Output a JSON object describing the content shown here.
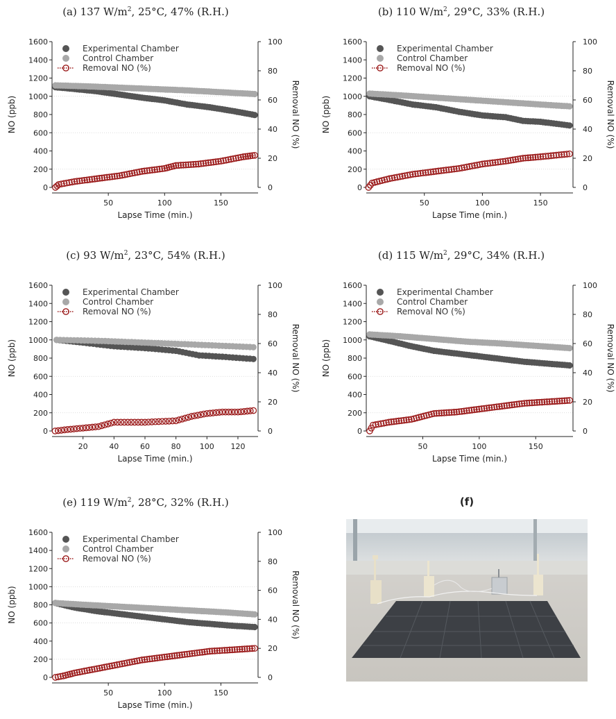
{
  "chart_data": [
    {
      "type": "scatter",
      "title_prefix": "(a) 137 W/m",
      "title_sup": "2",
      "title_suffix": ", 25°C, 47% (R.H.)",
      "xlabel": "Lapse Time (min.)",
      "ylabel": "NO (ppb)",
      "y2label": "Removal NO (%)",
      "xlim": [
        0,
        183
      ],
      "ylim": [
        0,
        1600
      ],
      "y2lim": [
        0,
        100
      ],
      "xticks": [
        50,
        100,
        150
      ],
      "yticks": [
        0,
        200,
        400,
        600,
        800,
        1000,
        1200,
        1400,
        1600
      ],
      "y2ticks": [
        0,
        20,
        40,
        60,
        80,
        100
      ],
      "legend": [
        "Experimental Chamber",
        "Control Chamber",
        "Removal NO (%)"
      ],
      "series": [
        {
          "name": "Experimental Chamber",
          "axis": "left",
          "x": [
            3,
            20,
            40,
            60,
            80,
            100,
            120,
            140,
            160,
            180
          ],
          "y": [
            1100,
            1080,
            1055,
            1020,
            985,
            955,
            910,
            880,
            840,
            795
          ]
        },
        {
          "name": "Control Chamber",
          "axis": "left",
          "x": [
            3,
            30,
            60,
            90,
            120,
            150,
            180
          ],
          "y": [
            1120,
            1110,
            1095,
            1080,
            1065,
            1045,
            1025
          ]
        },
        {
          "name": "Removal NO (%)",
          "axis": "right",
          "x": [
            3,
            6,
            20,
            40,
            60,
            80,
            100,
            110,
            130,
            150,
            170,
            180
          ],
          "y": [
            0,
            2,
            4,
            6,
            8,
            11,
            13,
            15,
            16,
            18,
            21,
            22
          ]
        }
      ]
    },
    {
      "type": "scatter",
      "title_prefix": "(b) 110 W/m",
      "title_sup": "2",
      "title_suffix": ", 29°C, 33% (R.H.)",
      "xlabel": "Lapse Time (min.)",
      "ylabel": "NO (ppb)",
      "y2label": "Removal NO (%)",
      "xlim": [
        0,
        178
      ],
      "ylim": [
        0,
        1600
      ],
      "y2lim": [
        0,
        100
      ],
      "xticks": [
        50,
        100,
        150
      ],
      "yticks": [
        0,
        200,
        400,
        600,
        800,
        1000,
        1200,
        1400,
        1600
      ],
      "y2ticks": [
        0,
        20,
        40,
        60,
        80,
        100
      ],
      "legend": [
        "Experimental Chamber",
        "Control Chamber",
        "Removal NO (%)"
      ],
      "series": [
        {
          "name": "Experimental Chamber",
          "axis": "left",
          "x": [
            3,
            20,
            40,
            60,
            80,
            100,
            120,
            135,
            150,
            175
          ],
          "y": [
            1000,
            960,
            910,
            880,
            830,
            790,
            770,
            730,
            720,
            680
          ]
        },
        {
          "name": "Control Chamber",
          "axis": "left",
          "x": [
            3,
            30,
            60,
            90,
            120,
            150,
            175
          ],
          "y": [
            1030,
            1010,
            985,
            960,
            935,
            910,
            890
          ]
        },
        {
          "name": "Removal NO (%)",
          "axis": "right",
          "x": [
            2,
            5,
            20,
            40,
            60,
            80,
            100,
            120,
            135,
            150,
            175
          ],
          "y": [
            0,
            3,
            6,
            9,
            11,
            13,
            16,
            18,
            20,
            21,
            23
          ]
        }
      ]
    },
    {
      "type": "scatter",
      "title_prefix": "(c) 93 W/m",
      "title_sup": "2",
      "title_suffix": ", 23°C, 54% (R.H.)",
      "xlabel": "Lapse Time (min.)",
      "ylabel": "NO (ppb)",
      "y2label": "Removal NO (%)",
      "xlim": [
        0,
        133
      ],
      "ylim": [
        0,
        1600
      ],
      "y2lim": [
        0,
        100
      ],
      "xticks": [
        20,
        40,
        60,
        80,
        100,
        120
      ],
      "yticks": [
        0,
        200,
        400,
        600,
        800,
        1000,
        1200,
        1400,
        1600
      ],
      "y2ticks": [
        0,
        20,
        40,
        60,
        80,
        100
      ],
      "legend": [
        "Experimental Chamber",
        "Control Chamber",
        "Removal NO (%)"
      ],
      "series": [
        {
          "name": "Experimental Chamber",
          "axis": "left",
          "x": [
            3,
            20,
            40,
            60,
            80,
            95,
            110,
            130
          ],
          "y": [
            1000,
            970,
            930,
            910,
            880,
            830,
            815,
            790
          ]
        },
        {
          "name": "Control Chamber",
          "axis": "left",
          "x": [
            3,
            30,
            60,
            90,
            130
          ],
          "y": [
            1000,
            990,
            970,
            950,
            920
          ]
        },
        {
          "name": "Removal NO (%)",
          "axis": "right",
          "x": [
            2,
            10,
            20,
            30,
            40,
            60,
            80,
            90,
            100,
            110,
            120,
            130
          ],
          "y": [
            0,
            1,
            2,
            3,
            6,
            6,
            7,
            10,
            12,
            13,
            13,
            14
          ]
        }
      ]
    },
    {
      "type": "scatter",
      "title_prefix": "(d) 115 W/m",
      "title_sup": "2",
      "title_suffix": ", 29°C, 34% (R.H.)",
      "xlabel": "Lapse Time (min.)",
      "ylabel": "NO (ppb)",
      "y2label": "Removal NO (%)",
      "xlim": [
        0,
        183
      ],
      "ylim": [
        0,
        1600
      ],
      "y2lim": [
        0,
        100
      ],
      "xticks": [
        50,
        100,
        150
      ],
      "yticks": [
        0,
        200,
        400,
        600,
        800,
        1000,
        1200,
        1400,
        1600
      ],
      "y2ticks": [
        0,
        20,
        40,
        60,
        80,
        100
      ],
      "legend": [
        "Experimental Chamber",
        "Control Chamber",
        "Removal NO (%)"
      ],
      "series": [
        {
          "name": "Experimental Chamber",
          "axis": "left",
          "x": [
            3,
            20,
            40,
            60,
            80,
            100,
            120,
            140,
            160,
            180
          ],
          "y": [
            1040,
            990,
            930,
            880,
            850,
            820,
            790,
            760,
            740,
            720
          ]
        },
        {
          "name": "Control Chamber",
          "axis": "left",
          "x": [
            3,
            30,
            60,
            90,
            120,
            150,
            180
          ],
          "y": [
            1060,
            1040,
            1010,
            980,
            960,
            935,
            910
          ]
        },
        {
          "name": "Removal NO (%)",
          "axis": "right",
          "x": [
            3,
            6,
            20,
            40,
            60,
            80,
            100,
            120,
            140,
            160,
            180
          ],
          "y": [
            0,
            4,
            6,
            8,
            12,
            13,
            15,
            17,
            19,
            20,
            21
          ]
        }
      ]
    },
    {
      "type": "scatter",
      "title_prefix": "(e) 119 W/m",
      "title_sup": "2",
      "title_suffix": ", 28°C, 32% (R.H.)",
      "xlabel": "Lapse Time (min.)",
      "ylabel": "NO (ppb)",
      "y2label": "Removal NO (%)",
      "xlim": [
        0,
        183
      ],
      "ylim": [
        0,
        1600
      ],
      "y2lim": [
        0,
        100
      ],
      "xticks": [
        50,
        100,
        150
      ],
      "yticks": [
        0,
        200,
        400,
        600,
        800,
        1000,
        1200,
        1400,
        1600
      ],
      "y2ticks": [
        0,
        20,
        40,
        60,
        80,
        100
      ],
      "legend": [
        "Experimental Chamber",
        "Control Chamber",
        "Removal NO (%)"
      ],
      "series": [
        {
          "name": "Experimental Chamber",
          "axis": "left",
          "x": [
            3,
            20,
            40,
            60,
            80,
            100,
            120,
            140,
            160,
            180
          ],
          "y": [
            820,
            770,
            730,
            700,
            670,
            640,
            610,
            590,
            570,
            555
          ]
        },
        {
          "name": "Control Chamber",
          "axis": "left",
          "x": [
            3,
            30,
            60,
            90,
            120,
            150,
            180
          ],
          "y": [
            820,
            800,
            780,
            760,
            740,
            720,
            695
          ]
        },
        {
          "name": "Removal NO (%)",
          "axis": "right",
          "x": [
            3,
            10,
            20,
            40,
            60,
            80,
            100,
            120,
            140,
            160,
            180
          ],
          "y": [
            0,
            1,
            3,
            6,
            9,
            12,
            14,
            16,
            18,
            19,
            20
          ]
        }
      ]
    }
  ],
  "photo": {
    "label": "(f)"
  },
  "colors": {
    "experimental": "#555555",
    "control": "#a8a8a8",
    "removal": "#9b1b1b"
  }
}
